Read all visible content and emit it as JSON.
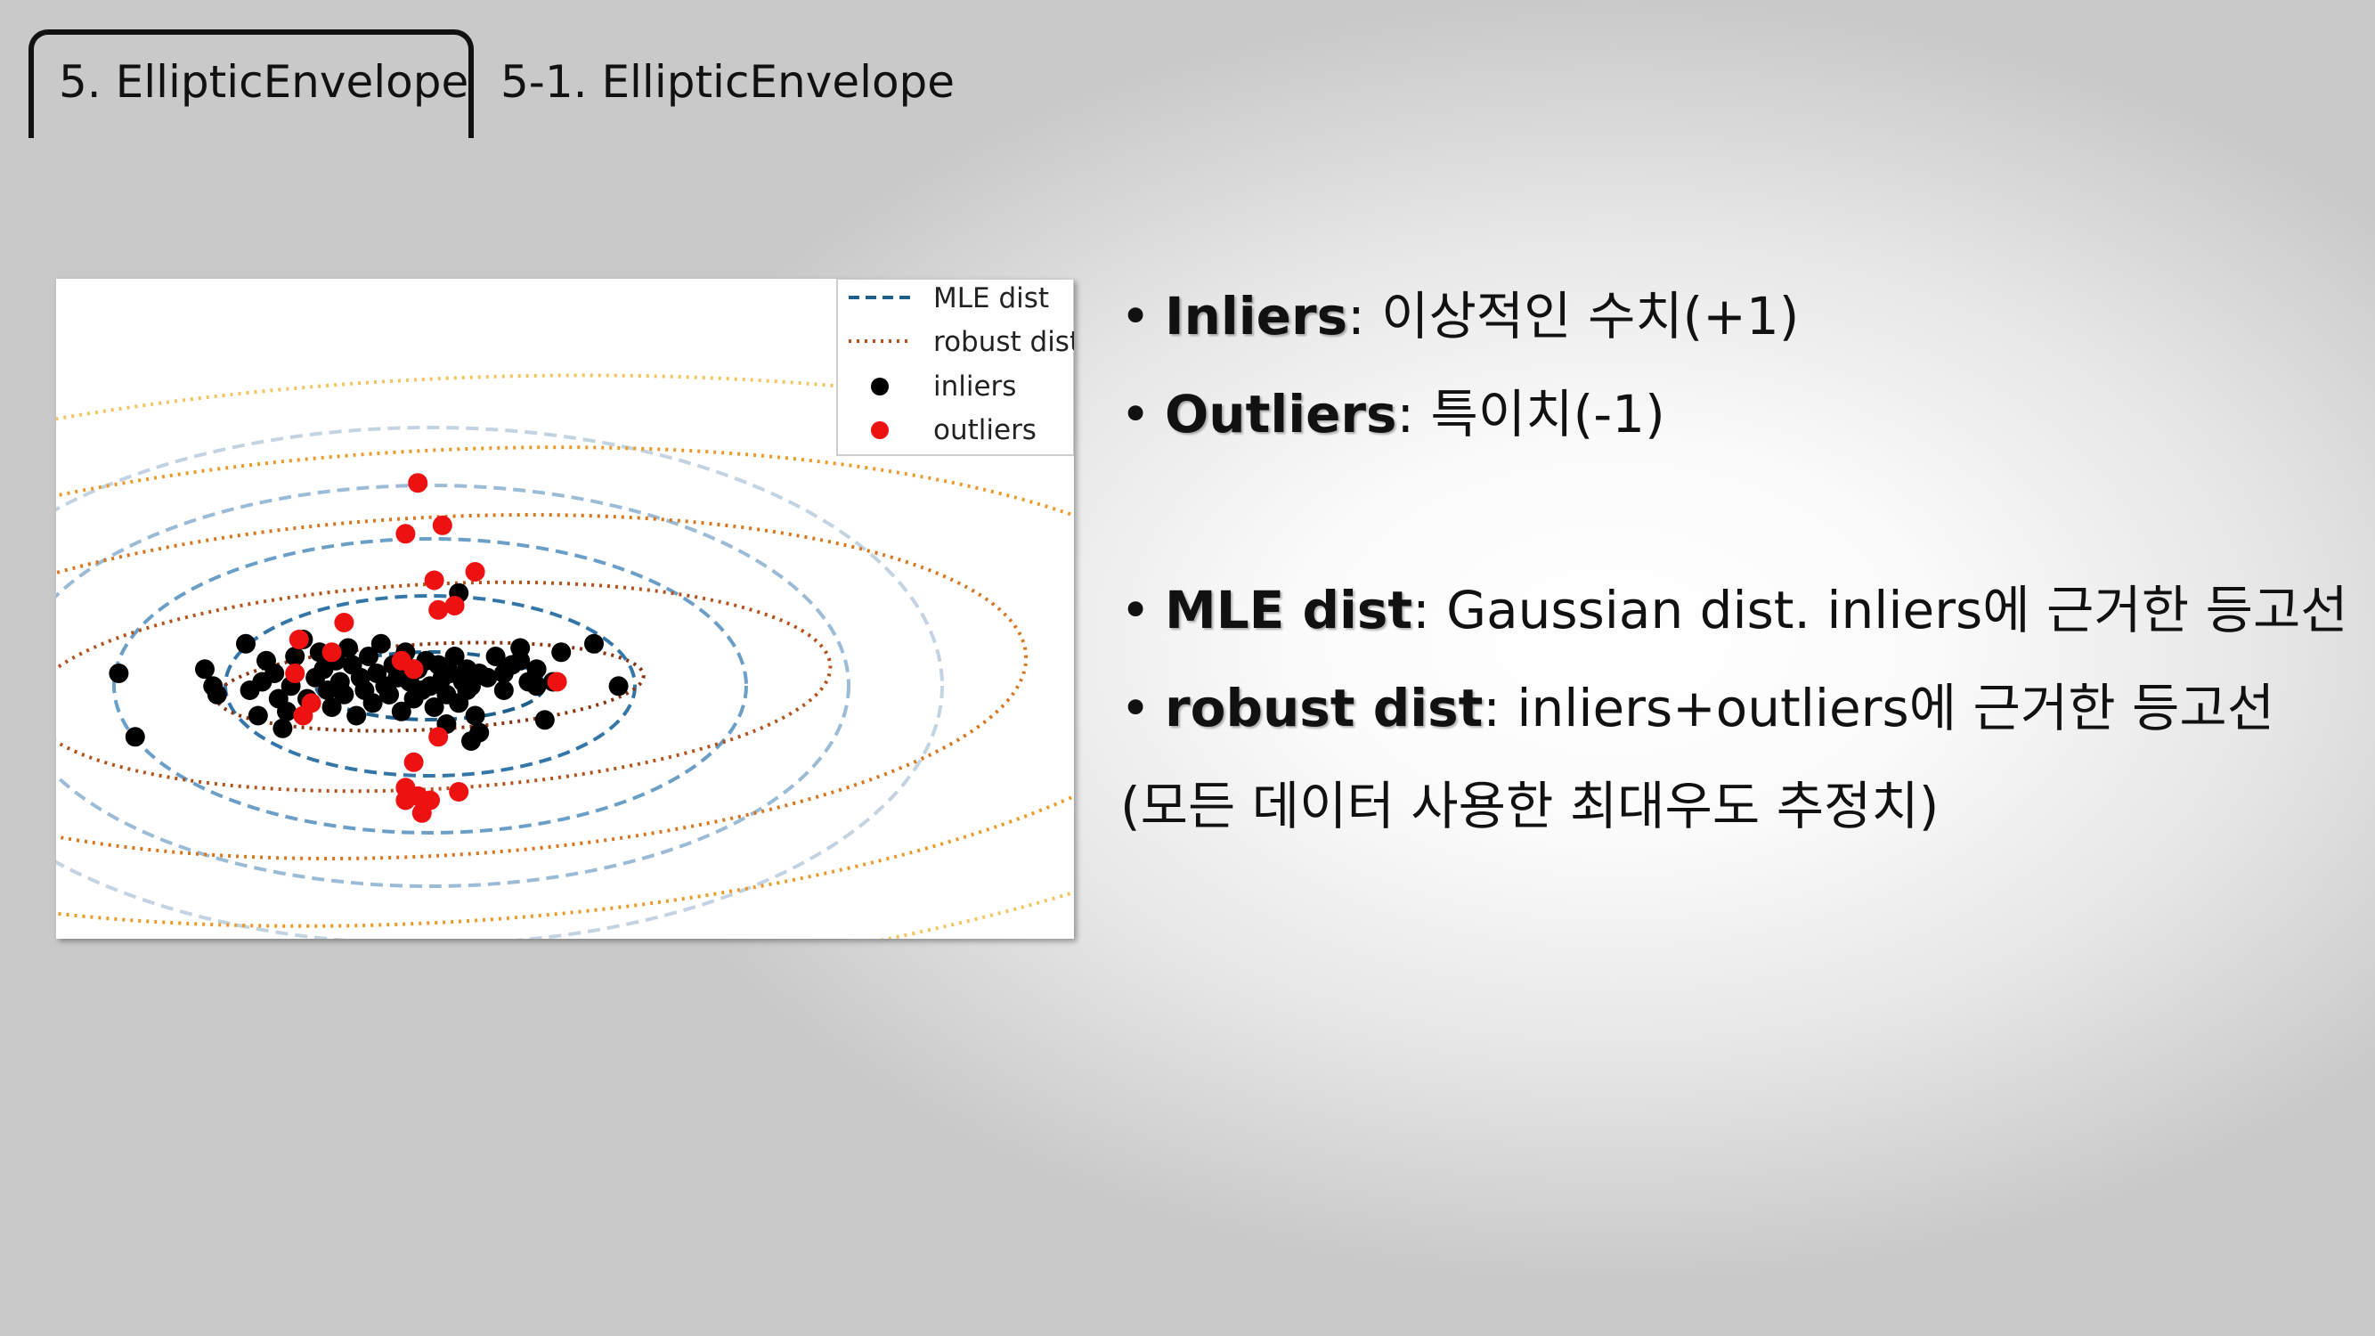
{
  "tabs": [
    {
      "label": "5. EllipticEnvelope",
      "active": true
    },
    {
      "label": "5-1. EllipticEnvelope",
      "active": false
    }
  ],
  "bullets": [
    {
      "marker": "•",
      "term": "Inliers",
      "desc": ": 이상적인 수치(+1)"
    },
    {
      "marker": "•",
      "term": "Outliers",
      "desc": ": 특이치(-1)"
    },
    {
      "marker": "•",
      "term": "MLE dist",
      "desc": ": Gaussian dist. inliers에 근거한 등고선"
    },
    {
      "marker": "•",
      "term": "robust dist",
      "desc": ": inliers+outliers에 근거한 등고선"
    }
  ],
  "note": "(모든 데이터 사용한 최대우도 추정치)",
  "chart_data": {
    "type": "scatter",
    "title": "",
    "xlabel": "",
    "ylabel": "",
    "grid": false,
    "legend_position": "top-right",
    "legend": [
      {
        "label": "MLE dist",
        "style": "dashed",
        "color": "#1f5f8b"
      },
      {
        "label": "robust dist",
        "style": "dotted",
        "color": "#b5531c"
      },
      {
        "label": "inliers",
        "style": "marker",
        "color": "#000000"
      },
      {
        "label": "outliers",
        "style": "marker",
        "color": "#ee1111"
      }
    ],
    "colors": {
      "mle": [
        "#1f5f8b",
        "#3576a8",
        "#6b9fc7",
        "#9bbbd6",
        "#c3d3e2"
      ],
      "robust": [
        "#8a3512",
        "#b5531c",
        "#d9761e",
        "#eb9a2a",
        "#f3c45e"
      ]
    },
    "series": [
      {
        "name": "inliers",
        "x": [
          -3.8,
          -3.6,
          -2.75,
          -2.65,
          -2.6,
          -2.25,
          -2.2,
          -2.1,
          -2.05,
          -2.0,
          -1.9,
          -1.85,
          -1.8,
          -1.75,
          -1.7,
          -1.65,
          -1.55,
          -1.5,
          -1.4,
          -1.35,
          -1.3,
          -1.25,
          -1.2,
          -1.15,
          -1.1,
          -1.05,
          -1.0,
          -0.95,
          -0.9,
          -0.85,
          -0.8,
          -0.75,
          -0.7,
          -0.65,
          -0.6,
          -0.55,
          -0.5,
          -0.45,
          -0.4,
          -0.35,
          -0.3,
          -0.25,
          -0.2,
          -0.15,
          -0.1,
          -0.05,
          0.0,
          0.05,
          0.1,
          0.15,
          0.2,
          0.25,
          0.3,
          0.35,
          0.4,
          0.45,
          0.5,
          0.55,
          0.6,
          0.7,
          0.8,
          0.9,
          1.0,
          1.1,
          1.2,
          1.3,
          1.4,
          0.35,
          0.45,
          0.5,
          0.6,
          0.9,
          1.1,
          1.3,
          1.5,
          1.6,
          2.0,
          2.3,
          -0.5,
          -0.2,
          0.2
        ],
        "y": [
          0.2,
          -0.55,
          0.25,
          0.05,
          -0.05,
          0.55,
          0.0,
          -0.3,
          0.1,
          0.35,
          0.2,
          -0.1,
          -0.45,
          -0.25,
          0.05,
          0.4,
          0.6,
          -0.1,
          0.15,
          0.45,
          0.25,
          0.0,
          -0.2,
          0.35,
          0.1,
          -0.05,
          0.5,
          0.3,
          -0.3,
          0.15,
          0.0,
          0.4,
          -0.15,
          0.2,
          0.55,
          0.05,
          -0.05,
          0.3,
          0.15,
          -0.25,
          0.45,
          0.1,
          -0.1,
          0.25,
          0.0,
          0.35,
          0.05,
          -0.2,
          0.3,
          0.15,
          -0.05,
          0.2,
          0.4,
          -0.15,
          0.1,
          0.25,
          0.05,
          -0.3,
          0.2,
          0.15,
          0.4,
          0.0,
          0.3,
          0.5,
          0.1,
          0.25,
          -0.35,
          1.15,
          0.0,
          -0.6,
          -0.5,
          0.2,
          0.35,
          0.05,
          0.1,
          0.45,
          0.55,
          0.05,
          -0.05,
          0.25,
          -0.4
        ]
      },
      {
        "name": "outliers",
        "x": [
          -0.15,
          0.15,
          -0.3,
          0.05,
          -1.6,
          0.55,
          -1.05,
          0.1,
          0.3,
          -1.2,
          -0.35,
          -0.2,
          -1.65,
          1.55,
          -1.45,
          -1.55,
          -0.2,
          0.1,
          -0.3,
          0.35,
          -0.15,
          -0.3,
          0.0,
          -0.1
        ],
        "y": [
          2.45,
          1.95,
          1.85,
          1.3,
          0.6,
          1.4,
          0.8,
          0.95,
          1.0,
          0.45,
          0.35,
          0.25,
          0.2,
          0.1,
          -0.15,
          -0.3,
          -0.85,
          -0.55,
          -1.15,
          -1.2,
          -1.25,
          -1.3,
          -1.3,
          -1.45
        ]
      }
    ]
  }
}
